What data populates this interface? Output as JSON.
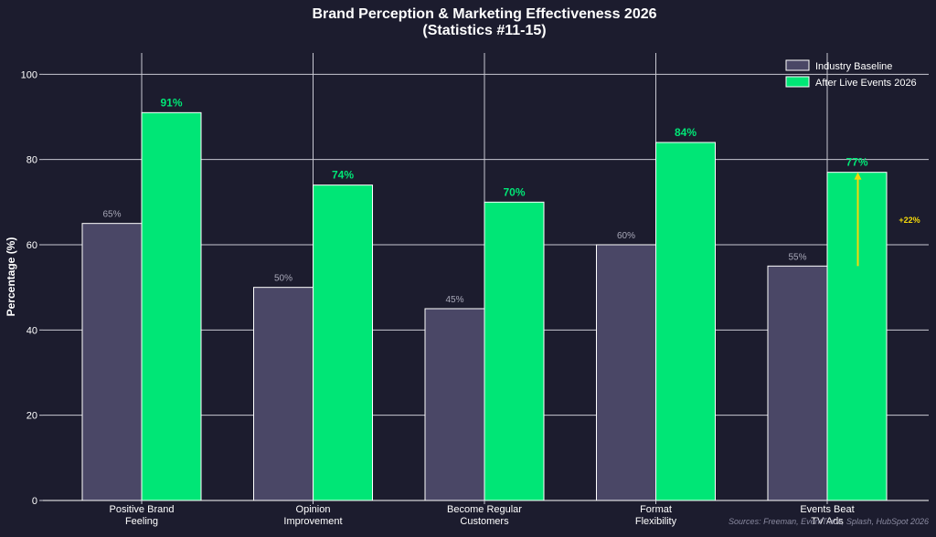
{
  "chart_data": {
    "type": "bar",
    "title_line1": "Brand Perception & Marketing Effectiveness 2026",
    "title_line2": "(Statistics #11-15)",
    "ylabel": "Percentage (%)",
    "xlabel": "",
    "ylim": [
      0,
      105
    ],
    "yticks": [
      0,
      20,
      40,
      60,
      80,
      100
    ],
    "grid": true,
    "legend_position": "top-right",
    "categories": [
      [
        "Positive Brand",
        "Feeling"
      ],
      [
        "Opinion",
        "Improvement"
      ],
      [
        "Become Regular",
        "Customers"
      ],
      [
        "Format",
        "Flexibility"
      ],
      [
        "Events Beat",
        "TV Ads"
      ]
    ],
    "series": [
      {
        "name": "Industry Baseline",
        "values": [
          65,
          50,
          45,
          60,
          55
        ],
        "labels": [
          "65%",
          "50%",
          "45%",
          "60%",
          "55%"
        ],
        "color": "#4a4766"
      },
      {
        "name": "After Live Events 2026",
        "values": [
          91,
          74,
          70,
          84,
          77
        ],
        "labels": [
          "91%",
          "74%",
          "70%",
          "84%",
          "77%"
        ],
        "color": "#00e676"
      }
    ],
    "annotation": {
      "category_index": 4,
      "from_value": 55,
      "to_value": 77,
      "text": "+22%",
      "color": "#f5d90a"
    },
    "source_note": "Sources: Freeman, EventTrack, Splash, HubSpot 2026"
  }
}
